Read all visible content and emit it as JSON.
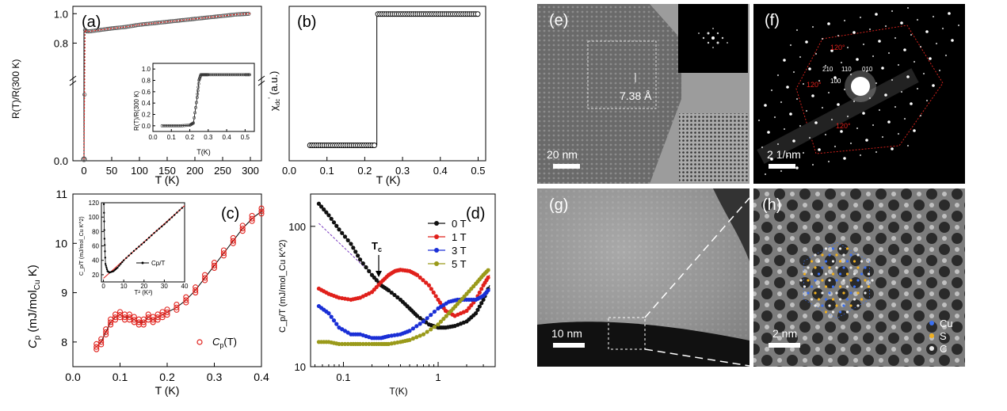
{
  "panels": {
    "a": {
      "label": "(a)",
      "ylabel": "R(T)/R(300 K)",
      "xlabel": "T (K)",
      "xticks": [
        "0",
        "50",
        "100",
        "150",
        "200",
        "250",
        "300"
      ],
      "yticks": [
        "0.0",
        "0.8",
        "1.0"
      ],
      "inset": {
        "ylabel": "R(T)/R(300 K)",
        "xlabel": "T(K)",
        "xticks": [
          "0.0",
          "0.1",
          "0.2",
          "0.3",
          "0.4",
          "0.5"
        ],
        "yticks": [
          "0.0",
          "0.2",
          "0.4",
          "0.6",
          "0.8",
          "1.0"
        ]
      }
    },
    "b": {
      "label": "(b)",
      "ylabel": "χ",
      "ylabel_sub": "dc",
      "ylabel_sup": "'",
      "ylabel_unit": "(a.u.)",
      "xlabel": "T (K)",
      "xticks": [
        "0.0",
        "0.1",
        "0.2",
        "0.3",
        "0.4",
        "0.5"
      ]
    },
    "c": {
      "label": "(c)",
      "ylabel_main": "C",
      "ylabel_sub": "p",
      "ylabel_unit_pre": "(mJ/mol",
      "ylabel_unit_sub": "Cu",
      "ylabel_unit_post": " K)",
      "xlabel": "T (K)",
      "xticks": [
        "0.0",
        "0.1",
        "0.2",
        "0.3",
        "0.4"
      ],
      "yticks": [
        "8",
        "9",
        "10",
        "11"
      ],
      "legend_main": "C",
      "legend_sub": "p",
      "legend_post": "(T)",
      "inset": {
        "ylabel": "C_p/T (mJ/mol_Cu K^2)",
        "xlabel": "T² (K²)",
        "xticks": [
          "0",
          "10",
          "20",
          "30",
          "40"
        ],
        "yticks": [
          "20",
          "40",
          "60",
          "80",
          "100",
          "120"
        ],
        "legend": "Cp/T"
      }
    },
    "d": {
      "label": "(d)",
      "ylabel": "C_p/T (mJ/mol_Cu K^2)",
      "xlabel": "T(K)",
      "xticks": [
        "0.1",
        "1"
      ],
      "yticks": [
        "10",
        "100"
      ],
      "tc_label": "T",
      "tc_sub": "c",
      "legend": [
        "0 T",
        "1 T",
        "3 T",
        "5 T"
      ]
    },
    "e": {
      "label": "(e)",
      "scale": "20 nm",
      "spacing": "7.38 Å"
    },
    "f": {
      "label": "(f)",
      "scale": "2 1/nm",
      "angle": "120°",
      "indices": [
        "210",
        "110",
        "010",
        "100"
      ]
    },
    "g": {
      "label": "(g)",
      "scale": "10 nm"
    },
    "h": {
      "label": "(h)",
      "scale": "2 nm",
      "legend": [
        "Cu",
        "S",
        "C"
      ]
    }
  },
  "colors": {
    "red": "#e0201b",
    "black": "#111111",
    "blue": "#1a2fd6",
    "olive": "#9a9a1a",
    "purple": "#7a3ac0",
    "cu": "#3a6ff0",
    "s": "#f0b020",
    "c": "#e8e8e8"
  },
  "chart_data": [
    {
      "type": "scatter",
      "title": "(a)",
      "xlabel": "T (K)",
      "ylabel": "R(T)/R(300 K)",
      "xlim": [
        -20,
        320
      ],
      "ylim": [
        0,
        1.05
      ],
      "series": [
        {
          "name": "R(T)/R(300K)",
          "x": [
            0,
            2,
            5,
            10,
            20,
            30,
            50,
            75,
            100,
            125,
            150,
            175,
            200,
            225,
            250,
            275,
            300
          ],
          "y": [
            0.01,
            0.89,
            0.88,
            0.88,
            0.885,
            0.89,
            0.9,
            0.91,
            0.925,
            0.935,
            0.945,
            0.955,
            0.965,
            0.975,
            0.985,
            0.995,
            1.0
          ]
        }
      ],
      "inset": {
        "x": [
          0.05,
          0.1,
          0.15,
          0.2,
          0.22,
          0.24,
          0.25,
          0.26,
          0.28,
          0.3,
          0.35,
          0.4,
          0.45,
          0.5,
          0.53
        ],
        "y": [
          0.0,
          0.0,
          0.0,
          0.01,
          0.05,
          0.5,
          0.8,
          0.9,
          0.9,
          0.9,
          0.9,
          0.9,
          0.9,
          0.9,
          0.9
        ],
        "xlim": [
          0,
          0.55
        ],
        "ylim": [
          -0.1,
          1.1
        ]
      }
    },
    {
      "type": "scatter",
      "title": "(b)",
      "xlabel": "T (K)",
      "ylabel": "χdc' (a.u.)",
      "xlim": [
        0.0,
        0.52
      ],
      "ylim": [
        0,
        1
      ],
      "series": [
        {
          "name": "chi",
          "x": [
            0.055,
            0.07,
            0.09,
            0.11,
            0.13,
            0.15,
            0.17,
            0.19,
            0.21,
            0.225,
            0.24,
            0.26,
            0.3,
            0.34,
            0.38,
            0.42,
            0.46,
            0.5
          ],
          "y": [
            0.1,
            0.1,
            0.1,
            0.1,
            0.1,
            0.1,
            0.1,
            0.1,
            0.1,
            0.1,
            0.95,
            0.95,
            0.95,
            0.95,
            0.95,
            0.95,
            0.95,
            0.95
          ]
        }
      ]
    },
    {
      "type": "scatter",
      "title": "(c)",
      "xlabel": "T (K)",
      "ylabel": "Cp (mJ/molCu K)",
      "xlim": [
        0.0,
        0.4
      ],
      "ylim": [
        7.5,
        11
      ],
      "series": [
        {
          "name": "Cp(T)",
          "x": [
            0.05,
            0.06,
            0.07,
            0.08,
            0.09,
            0.1,
            0.11,
            0.12,
            0.13,
            0.14,
            0.15,
            0.16,
            0.17,
            0.18,
            0.19,
            0.2,
            0.22,
            0.24,
            0.26,
            0.28,
            0.3,
            0.32,
            0.34,
            0.36,
            0.38,
            0.4
          ],
          "y": [
            7.9,
            8.0,
            8.2,
            8.4,
            8.5,
            8.55,
            8.5,
            8.5,
            8.45,
            8.4,
            8.4,
            8.5,
            8.45,
            8.5,
            8.55,
            8.6,
            8.7,
            8.85,
            9.05,
            9.3,
            9.55,
            9.8,
            10.05,
            10.3,
            10.5,
            10.65
          ]
        }
      ],
      "inset": {
        "x": [
          0.2,
          0.5,
          1,
          2,
          3,
          5,
          7,
          10,
          15,
          20,
          25,
          30,
          35,
          40
        ],
        "y": [
          118,
          70,
          35,
          25,
          23,
          25,
          30,
          40,
          53,
          65,
          78,
          90,
          103,
          116
        ],
        "xlim": [
          -1,
          40
        ],
        "ylim": [
          10,
          120
        ]
      }
    },
    {
      "type": "line",
      "title": "(d)",
      "xlabel": "T(K)",
      "ylabel": "Cp/T (mJ/molCu K^2)",
      "xscale": "log",
      "yscale": "log",
      "xlim": [
        0.045,
        4
      ],
      "ylim": [
        10,
        170
      ],
      "series": [
        {
          "name": "0 T",
          "x": [
            0.055,
            0.07,
            0.09,
            0.12,
            0.15,
            0.2,
            0.25,
            0.3,
            0.4,
            0.5,
            0.6,
            0.8,
            1.0,
            1.2,
            1.5,
            2,
            2.5,
            3,
            3.5
          ],
          "y": [
            145,
            120,
            95,
            75,
            58,
            45,
            38,
            35,
            30,
            26,
            23,
            20,
            19,
            19,
            19.5,
            21,
            24,
            30,
            38
          ]
        },
        {
          "name": "1 T",
          "x": [
            0.055,
            0.07,
            0.09,
            0.12,
            0.15,
            0.2,
            0.25,
            0.3,
            0.35,
            0.4,
            0.5,
            0.6,
            0.8,
            1.0,
            1.2,
            1.5,
            2,
            2.5,
            3,
            3.5
          ],
          "y": [
            36,
            33,
            31,
            30,
            31,
            34,
            40,
            45,
            48,
            49,
            48,
            45,
            38,
            30,
            25,
            23,
            25,
            30,
            38,
            45
          ]
        },
        {
          "name": "3 T",
          "x": [
            0.055,
            0.07,
            0.09,
            0.12,
            0.15,
            0.2,
            0.25,
            0.3,
            0.4,
            0.5,
            0.7,
            1.0,
            1.3,
            1.6,
            2,
            2.5,
            3,
            3.5
          ],
          "y": [
            27,
            24,
            19,
            17,
            17,
            16,
            16,
            16.5,
            17,
            18,
            21,
            26,
            29,
            30,
            30,
            30,
            32,
            36
          ]
        },
        {
          "name": "5 T",
          "x": [
            0.055,
            0.07,
            0.09,
            0.12,
            0.15,
            0.2,
            0.25,
            0.3,
            0.4,
            0.5,
            0.7,
            1.0,
            1.3,
            1.6,
            2,
            2.5,
            3,
            3.5
          ],
          "y": [
            15,
            15,
            14.5,
            14.5,
            14.5,
            14.5,
            14.5,
            14.5,
            15,
            15.5,
            17,
            20,
            24,
            28,
            33,
            39,
            45,
            50
          ]
        }
      ]
    }
  ]
}
